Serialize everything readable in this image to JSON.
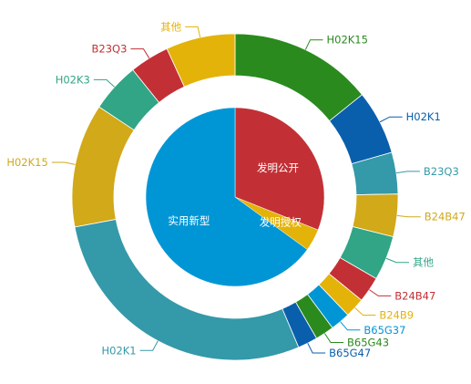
{
  "chart_data": {
    "type": "pie",
    "variant": "nested-donut",
    "inner": {
      "slices": [
        {
          "label": "发明公开",
          "value": 31,
          "color": "#c23035"
        },
        {
          "label": "发明授权",
          "value": 4,
          "color": "#e3b30a"
        },
        {
          "label": "实用新型",
          "value": 65,
          "color": "#0096d6"
        }
      ]
    },
    "outer": {
      "slices": [
        {
          "label": "H02K15",
          "value": 14.5,
          "color": "#2a8a1e",
          "inner_group": "发明公开"
        },
        {
          "label": "H02K1",
          "value": 6.5,
          "color": "#0a5fac",
          "inner_group": "发明公开"
        },
        {
          "label": "B23Q3",
          "value": 4.2,
          "color": "#3499a8",
          "inner_group": "发明公开"
        },
        {
          "label": "B24B47",
          "value": 4.3,
          "color": "#d1a919",
          "inner_group": "发明公开"
        },
        {
          "label": "其他",
          "value": 4.5,
          "color": "#31a585",
          "inner_group": "发明公开"
        },
        {
          "label": "B24B47",
          "value": 2.6,
          "color": "#c23035",
          "inner_group": "发明授权"
        },
        {
          "label": "B24B9",
          "value": 2.0,
          "color": "#e3b30a",
          "inner_group": "发明授权"
        },
        {
          "label": "B65G37",
          "value": 2.0,
          "color": "#0096d6",
          "inner_group": "实用新型"
        },
        {
          "label": "B65G43",
          "value": 1.9,
          "color": "#2a8a1e",
          "inner_group": "实用新型"
        },
        {
          "label": "B65G47",
          "value": 2.0,
          "color": "#0a5fac",
          "inner_group": "实用新型"
        },
        {
          "label": "H02K1",
          "value": 29.0,
          "color": "#3499a8",
          "inner_group": "实用新型"
        },
        {
          "label": "H02K15",
          "value": 12.5,
          "color": "#d1a919",
          "inner_group": "实用新型"
        },
        {
          "label": "H02K3",
          "value": 5.0,
          "color": "#31a585",
          "inner_group": "实用新型"
        },
        {
          "label": "B23Q3",
          "value": 4.0,
          "color": "#c23035",
          "inner_group": "实用新型"
        },
        {
          "label": "其他",
          "value": 7.0,
          "color": "#e3b30a",
          "inner_group": "实用新型"
        }
      ]
    }
  }
}
